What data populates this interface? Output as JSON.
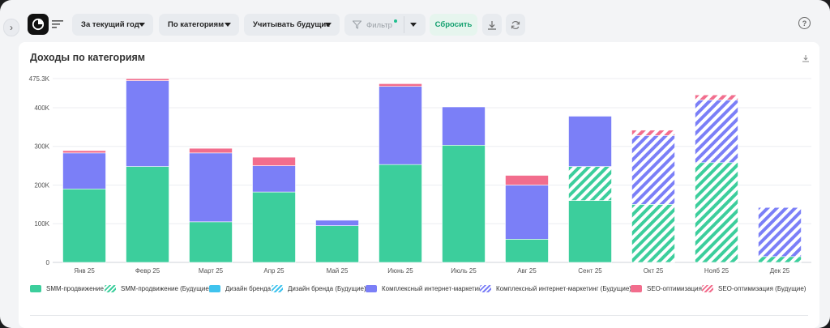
{
  "toolbar": {
    "period_label": "За текущий год",
    "grouping_label": "По категориям",
    "future_label": "Учитывать будущие",
    "filter_label": "Фильтр",
    "reset_label": "Сбросить",
    "help_label": "?"
  },
  "card": {
    "title": "Доходы по категориям"
  },
  "colors": {
    "smm": "#3cce9c",
    "design": "#3fc3ee",
    "marketing": "#7b7ff7",
    "seo": "#f26d8d",
    "accent": "#13a06f"
  },
  "chart_data": {
    "type": "bar",
    "stacked": true,
    "categories": [
      "Янв 25",
      "Февр 25",
      "Март 25",
      "Апр 25",
      "Май 25",
      "Июнь 25",
      "Июль 25",
      "Авг 25",
      "Сент 25",
      "Окт 25",
      "Нояб 25",
      "Дек 25"
    ],
    "y_ticks": [
      "0",
      "100K",
      "200K",
      "300K",
      "400K",
      "475.3K"
    ],
    "ylim": [
      0,
      475300
    ],
    "grid": true,
    "legend_position": "bottom",
    "series": [
      {
        "name": "SMM-продвижение",
        "color": "#3cce9c",
        "future": false,
        "values": [
          190000,
          248000,
          105000,
          182000,
          95000,
          253000,
          303000,
          60000,
          160000,
          0,
          0,
          0
        ]
      },
      {
        "name": "SMM-продвижение (Будущие)",
        "color": "#3cce9c",
        "future": true,
        "values": [
          0,
          0,
          0,
          0,
          0,
          0,
          0,
          0,
          88000,
          150000,
          258000,
          15000
        ]
      },
      {
        "name": "Дизайн бренда",
        "color": "#3fc3ee",
        "future": false,
        "values": [
          0,
          0,
          0,
          0,
          0,
          0,
          0,
          0,
          0,
          0,
          0,
          0
        ]
      },
      {
        "name": "Дизайн бренда (Будущие)",
        "color": "#3fc3ee",
        "future": true,
        "values": [
          0,
          0,
          0,
          0,
          0,
          0,
          0,
          0,
          0,
          0,
          0,
          0
        ]
      },
      {
        "name": "Комплексный интернет-маркетинг",
        "color": "#7b7ff7",
        "future": false,
        "values": [
          93000,
          222000,
          178000,
          68000,
          14000,
          202000,
          99000,
          140000,
          130000,
          0,
          0,
          0
        ]
      },
      {
        "name": "Комплексный интернет-маркетинг (Будущие)",
        "color": "#7b7ff7",
        "future": true,
        "values": [
          0,
          0,
          0,
          0,
          0,
          0,
          0,
          0,
          0,
          178000,
          162000,
          127000
        ]
      },
      {
        "name": "SEO-оптимизация",
        "color": "#f26d8d",
        "future": false,
        "values": [
          6000,
          5000,
          12000,
          22000,
          0,
          7000,
          0,
          25000,
          0,
          0,
          0,
          0
        ]
      },
      {
        "name": "SEO-оптимизация (Будущие)",
        "color": "#f26d8d",
        "future": true,
        "values": [
          0,
          0,
          0,
          0,
          0,
          0,
          0,
          0,
          0,
          14000,
          13000,
          0
        ]
      }
    ]
  }
}
